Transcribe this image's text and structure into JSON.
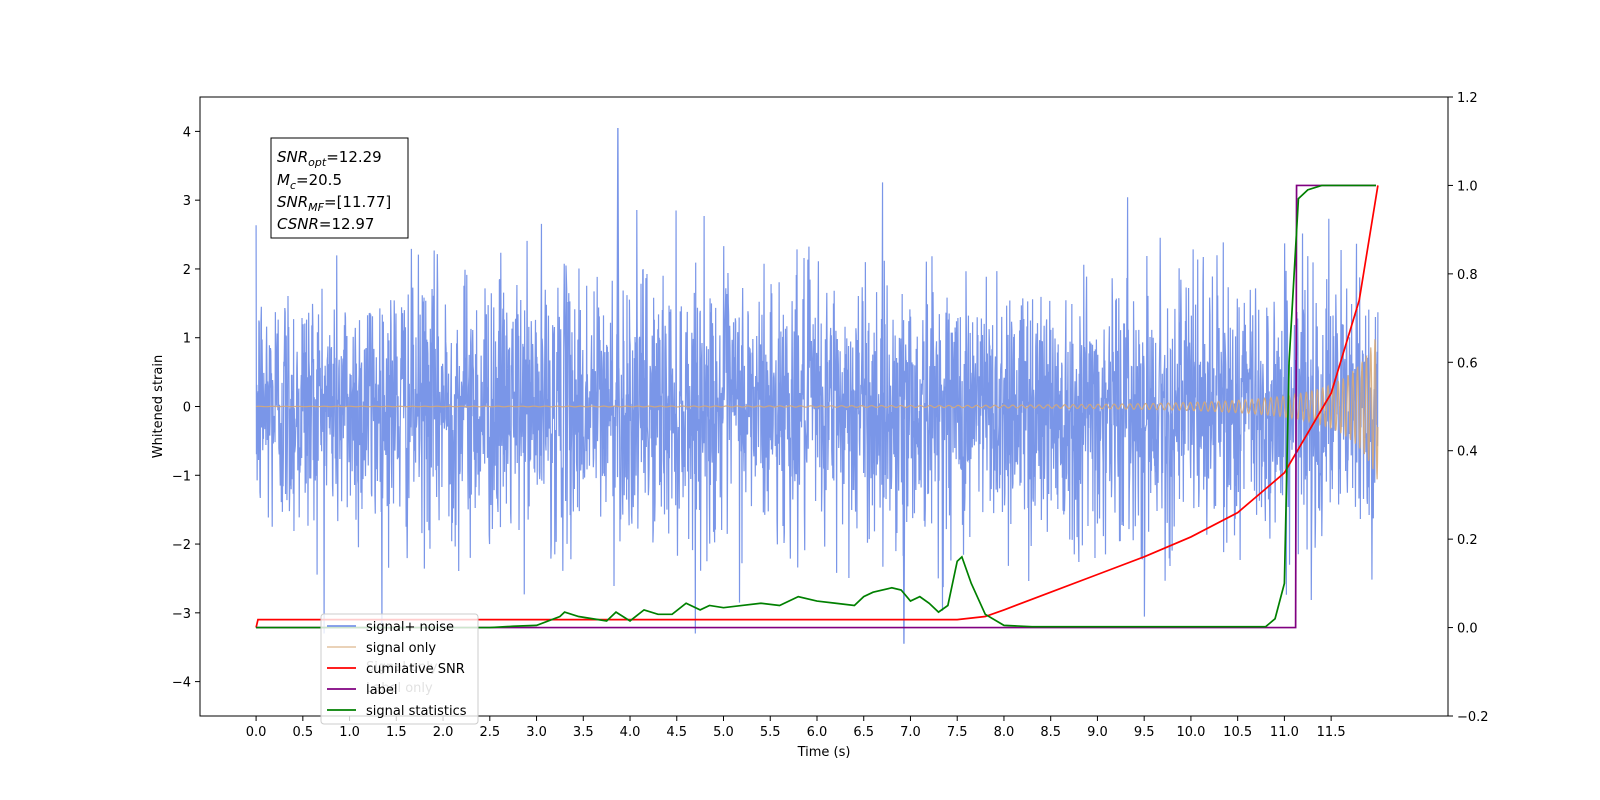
{
  "chart_data": {
    "type": "line",
    "xlabel": "Time (s)",
    "ylabel": "Whitened strain",
    "xlim": [
      -0.6,
      12.75
    ],
    "ylim": [
      -4.5,
      4.5
    ],
    "y2lim": [
      -0.2,
      1.2
    ],
    "x_ticks": [
      "0.0",
      "0.5",
      "1.0",
      "1.5",
      "2.0",
      "2.5",
      "3.0",
      "3.5",
      "4.0",
      "4.5",
      "5.0",
      "5.5",
      "6.0",
      "6.5",
      "7.0",
      "7.5",
      "8.0",
      "8.5",
      "9.0",
      "9.5",
      "10.0",
      "10.5",
      "11.0",
      "11.5"
    ],
    "y_ticks": [
      "4",
      "3",
      "2",
      "1",
      "0",
      "−1",
      "−2",
      "−3",
      "−4"
    ],
    "y2_ticks": [
      "1.2",
      "1.0",
      "0.8",
      "0.6",
      "0.4",
      "0.2",
      "0.0",
      "−0.2"
    ],
    "annotations": {
      "snr_opt": "=12.29",
      "mc": "=20.5",
      "snr_mf": "=[11.77]",
      "csnr": "=12.97"
    },
    "series": [
      {
        "name": "signal+ noise",
        "axis": "left",
        "color": "#7a96e8",
        "kind": "noise",
        "x_start": 0.0,
        "x_end": 12.0,
        "typical_amplitude": 2.2,
        "max": 4.05,
        "min": -3.45
      },
      {
        "name": "signal only",
        "axis": "left",
        "color": "#d6a878",
        "kind": "chirp",
        "x_start": 0.0,
        "x_end": 12.0,
        "final_amplitude": 1.1
      },
      {
        "name": "cumilative SNR",
        "axis": "right",
        "color": "#ff0000",
        "x": [
          0.0,
          0.02,
          7.5,
          7.8,
          8.0,
          8.5,
          9.0,
          9.5,
          10.0,
          10.5,
          11.0,
          11.5,
          11.8,
          12.0
        ],
        "y": [
          0.0,
          0.018,
          0.018,
          0.025,
          0.04,
          0.08,
          0.12,
          0.16,
          0.205,
          0.26,
          0.35,
          0.53,
          0.74,
          1.0
        ]
      },
      {
        "name": "label",
        "axis": "right",
        "color": "#800080",
        "x": [
          0.0,
          11.12,
          11.13,
          11.98
        ],
        "y": [
          0.0,
          0.0,
          1.0,
          1.0
        ]
      },
      {
        "name": "signal statistics",
        "axis": "right",
        "color": "#008000",
        "x": [
          0.0,
          2.5,
          2.75,
          3.0,
          3.25,
          3.3,
          3.45,
          3.6,
          3.75,
          3.85,
          4.0,
          4.15,
          4.3,
          4.45,
          4.6,
          4.75,
          4.85,
          5.0,
          5.2,
          5.4,
          5.6,
          5.8,
          6.0,
          6.2,
          6.4,
          6.5,
          6.6,
          6.8,
          6.9,
          7.0,
          7.1,
          7.2,
          7.3,
          7.4,
          7.5,
          7.55,
          7.65,
          7.8,
          8.0,
          8.3,
          10.8,
          10.9,
          11.0,
          11.05,
          11.15,
          11.25,
          11.4,
          11.98
        ],
        "y": [
          0.0,
          0.0,
          0.003,
          0.005,
          0.025,
          0.035,
          0.025,
          0.02,
          0.015,
          0.035,
          0.015,
          0.04,
          0.03,
          0.03,
          0.055,
          0.04,
          0.05,
          0.045,
          0.05,
          0.055,
          0.05,
          0.07,
          0.06,
          0.055,
          0.05,
          0.07,
          0.08,
          0.09,
          0.085,
          0.06,
          0.07,
          0.055,
          0.035,
          0.05,
          0.15,
          0.16,
          0.1,
          0.03,
          0.005,
          0.002,
          0.002,
          0.02,
          0.1,
          0.6,
          0.97,
          0.99,
          1.0,
          1.0
        ]
      }
    ],
    "legend": {
      "placement": "lower-left",
      "entries": [
        "signal+ noise",
        "signal only",
        "cumilative SNR",
        "label",
        "signal statistics"
      ],
      "overlaid_text": [
        "Signal only",
        "Label only"
      ]
    },
    "grid": false
  }
}
